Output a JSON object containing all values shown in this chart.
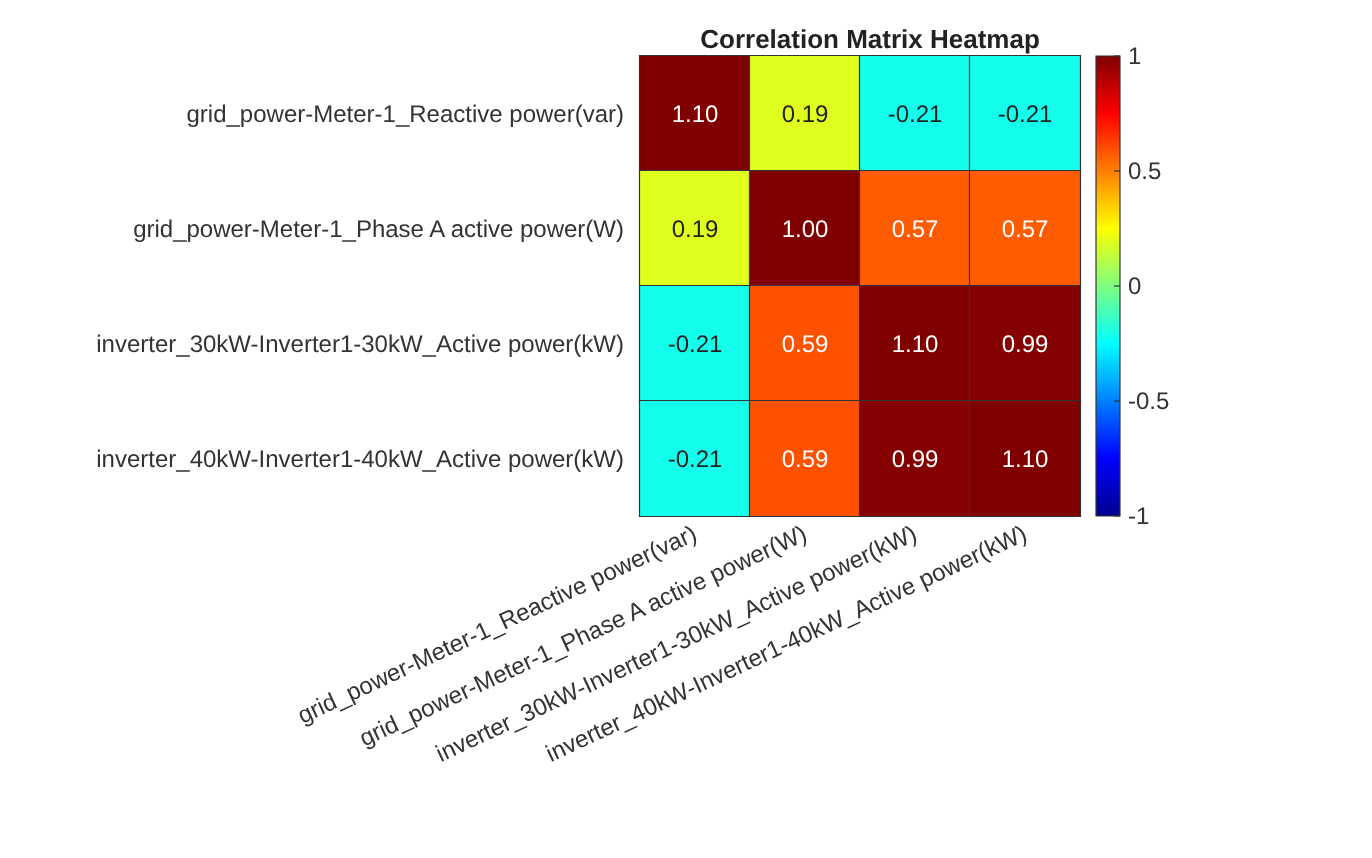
{
  "chart_data": {
    "type": "heatmap",
    "title": "Correlation Matrix Heatmap",
    "categories": [
      "grid_power-Meter-1_Reactive power(var)",
      "grid_power-Meter-1_Phase A active power(W)",
      "inverter_30kW-Inverter1-30kW_Active power(kW)",
      "inverter_40kW-Inverter1-40kW_Active power(kW)"
    ],
    "y_categories": [
      "grid_power-Meter-1_Reactive power(var)",
      "grid_power-Meter-1_Phase A active power(W)",
      "inverter_30kW-Inverter1-30kW_Active power(kW)",
      "inverter_40kW-Inverter1-40kW_Active power(kW)"
    ],
    "cells": [
      [
        1.1,
        0.19,
        -0.21,
        -0.21
      ],
      [
        0.19,
        1.0,
        0.57,
        0.57
      ],
      [
        -0.21,
        0.59,
        1.1,
        0.99
      ],
      [
        -0.21,
        0.59,
        0.99,
        1.1
      ]
    ],
    "cell_labels": [
      [
        "1.10",
        "0.19",
        "-0.21",
        "-0.21"
      ],
      [
        "0.19",
        "1.00",
        "0.57",
        "0.57"
      ],
      [
        "-0.21",
        "0.59",
        "1.10",
        "0.99"
      ],
      [
        "-0.21",
        "0.59",
        "0.99",
        "1.10"
      ]
    ],
    "clim": [
      -1,
      1
    ],
    "cticks": [
      -1,
      -0.5,
      0,
      0.5,
      1
    ]
  }
}
